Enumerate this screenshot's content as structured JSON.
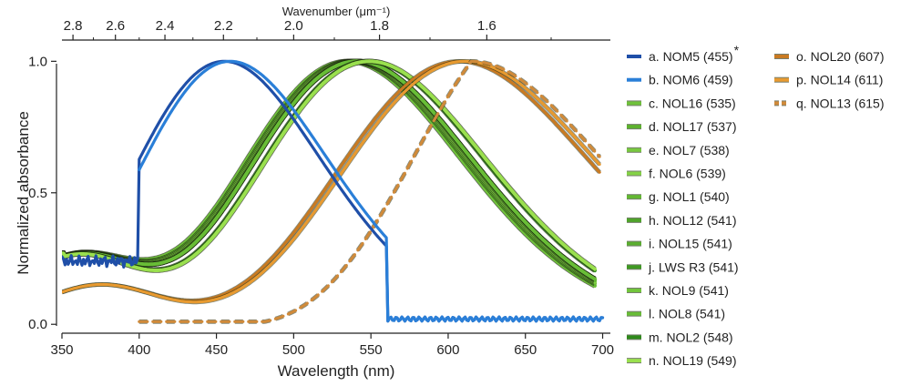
{
  "chart_data": {
    "type": "line",
    "xlabel": "Wavelength (nm)",
    "ylabel": "Normalized absorbance",
    "top_axis_label": "Wavenumber (μm⁻¹)",
    "x_ticks": [
      350,
      400,
      450,
      500,
      550,
      600,
      650,
      700
    ],
    "x_tick_labels": [
      "350",
      "400",
      "450",
      "500",
      "550",
      "600",
      "650",
      "700"
    ],
    "y_ticks": [
      0.0,
      0.5,
      1.0
    ],
    "y_tick_labels": [
      "0.0",
      "0.5",
      "1.0"
    ],
    "top_ticks": [
      2.8,
      2.6,
      2.4,
      2.2,
      2.0,
      1.8,
      1.6
    ],
    "top_tick_labels": [
      "2.8",
      "2.6",
      "2.4",
      "2.2",
      "2.0",
      "1.8",
      "1.6"
    ],
    "xlim": [
      350,
      705
    ],
    "ylim": [
      -0.02,
      1.06
    ],
    "asterisk": "*",
    "series": [
      {
        "key": "a",
        "label": "a. NOM5 (455)",
        "lambda_max": 455,
        "family": "blue",
        "color": "#1f4fa8",
        "style": "solid",
        "starred": true
      },
      {
        "key": "b",
        "label": "b. NOM6 (459)",
        "lambda_max": 459,
        "family": "blue",
        "color": "#2a7fd8",
        "style": "solid"
      },
      {
        "key": "c",
        "label": "c. NOL16 (535)",
        "lambda_max": 535,
        "family": "green",
        "color": "#6fc23a",
        "style": "solid"
      },
      {
        "key": "d",
        "label": "d. NOL17 (537)",
        "lambda_max": 537,
        "family": "green",
        "color": "#5db22e",
        "style": "solid"
      },
      {
        "key": "e",
        "label": "e. NOL7 (538)",
        "lambda_max": 538,
        "family": "green",
        "color": "#78c93f",
        "style": "solid"
      },
      {
        "key": "f",
        "label": "f. NOL6 (539)",
        "lambda_max": 539,
        "family": "green",
        "color": "#84d246",
        "style": "solid"
      },
      {
        "key": "g",
        "label": "g. NOL1 (540)",
        "lambda_max": 540,
        "family": "green",
        "color": "#63b832",
        "style": "solid"
      },
      {
        "key": "h",
        "label": "h. NOL12 (541)",
        "lambda_max": 541,
        "family": "green",
        "color": "#4fa42a",
        "style": "solid"
      },
      {
        "key": "i",
        "label": "i. NOL15 (541)",
        "lambda_max": 541,
        "family": "green",
        "color": "#5aae30",
        "style": "solid"
      },
      {
        "key": "j",
        "label": "j. LWS R3 (541)",
        "lambda_max": 541,
        "family": "green",
        "color": "#3f9a22",
        "style": "solid"
      },
      {
        "key": "k",
        "label": "k. NOL9 (541)",
        "lambda_max": 541,
        "family": "green",
        "color": "#72c53c",
        "style": "solid"
      },
      {
        "key": "l",
        "label": "l. NOL8 (541)",
        "lambda_max": 541,
        "family": "green",
        "color": "#68bd36",
        "style": "solid"
      },
      {
        "key": "m",
        "label": "m. NOL2 (548)",
        "lambda_max": 548,
        "family": "green",
        "color": "#2e8a1a",
        "style": "solid"
      },
      {
        "key": "n",
        "label": "n. NOL19 (549)",
        "lambda_max": 549,
        "family": "green",
        "color": "#9ae04e",
        "style": "solid"
      },
      {
        "key": "o",
        "label": "o. NOL20 (607)",
        "lambda_max": 607,
        "family": "orange",
        "color": "#c97a22",
        "style": "solid"
      },
      {
        "key": "p",
        "label": "p. NOL14 (611)",
        "lambda_max": 611,
        "family": "orange",
        "color": "#e89a30",
        "style": "solid"
      },
      {
        "key": "q",
        "label": "q. NOL13 (615)",
        "lambda_max": 615,
        "family": "orange",
        "color": "#d08a3a",
        "style": "dashed"
      }
    ]
  }
}
